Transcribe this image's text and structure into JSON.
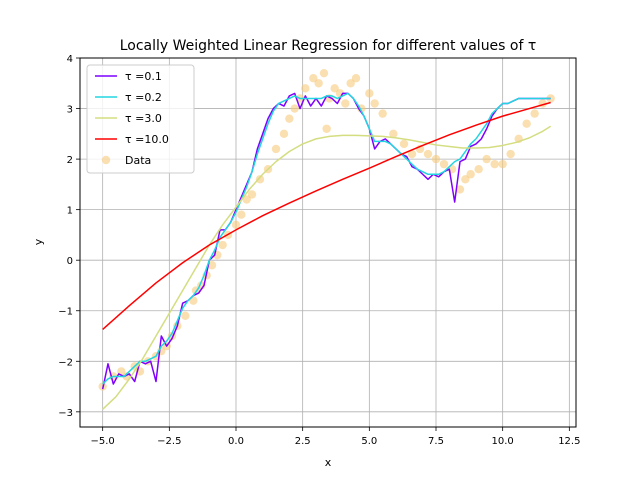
{
  "chart_data": {
    "type": "line",
    "title": "Locally Weighted Linear Regression for different values of τ",
    "xlabel": "x",
    "ylabel": "y",
    "xlim": [
      -5.85,
      12.75
    ],
    "ylim": [
      -3.3,
      4.0
    ],
    "xticks": [
      -5.0,
      -2.5,
      0.0,
      2.5,
      5.0,
      7.5,
      10.0,
      12.5
    ],
    "xtick_labels": [
      "−5.0",
      "−2.5",
      "0.0",
      "2.5",
      "5.0",
      "7.5",
      "10.0",
      "12.5"
    ],
    "yticks": [
      -3,
      -2,
      -1,
      0,
      1,
      2,
      3,
      4
    ],
    "ytick_labels": [
      "−3",
      "−2",
      "−1",
      "0",
      "1",
      "2",
      "3",
      "4"
    ],
    "grid": true,
    "legend_position": "top-left",
    "series": [
      {
        "name": "τ =0.1",
        "color": "#7f00ff",
        "x": [
          -5.0,
          -4.8,
          -4.6,
          -4.4,
          -4.2,
          -4.0,
          -3.8,
          -3.6,
          -3.4,
          -3.2,
          -3.0,
          -2.8,
          -2.6,
          -2.4,
          -2.2,
          -2.0,
          -1.8,
          -1.6,
          -1.4,
          -1.2,
          -1.0,
          -0.8,
          -0.6,
          -0.4,
          -0.2,
          0.0,
          0.2,
          0.4,
          0.6,
          0.8,
          1.0,
          1.2,
          1.4,
          1.6,
          1.8,
          2.0,
          2.2,
          2.4,
          2.6,
          2.8,
          3.0,
          3.2,
          3.4,
          3.6,
          3.8,
          4.0,
          4.2,
          4.4,
          4.6,
          4.8,
          5.0,
          5.2,
          5.4,
          5.6,
          5.8,
          6.0,
          6.2,
          6.4,
          6.6,
          6.8,
          7.0,
          7.2,
          7.4,
          7.6,
          7.8,
          8.0,
          8.2,
          8.4,
          8.6,
          8.8,
          9.0,
          9.2,
          9.4,
          9.6,
          9.8,
          10.0,
          10.2,
          10.4,
          10.6,
          10.8,
          11.0,
          11.2,
          11.4,
          11.6,
          11.8
        ],
        "y": [
          -2.55,
          -2.05,
          -2.45,
          -2.25,
          -2.3,
          -2.25,
          -2.4,
          -2.0,
          -2.05,
          -2.0,
          -2.4,
          -1.5,
          -1.7,
          -1.55,
          -1.3,
          -0.85,
          -0.8,
          -0.7,
          -0.65,
          -0.5,
          0.0,
          0.1,
          0.6,
          0.6,
          0.75,
          1.0,
          1.25,
          1.5,
          1.75,
          2.2,
          2.5,
          2.8,
          3.0,
          3.1,
          3.05,
          3.25,
          3.3,
          3.0,
          3.25,
          3.05,
          3.2,
          3.05,
          3.25,
          3.2,
          3.1,
          3.3,
          3.3,
          3.2,
          3.0,
          2.85,
          2.6,
          2.2,
          2.35,
          2.4,
          2.3,
          2.2,
          2.1,
          2.05,
          1.85,
          1.8,
          1.7,
          1.6,
          1.7,
          1.65,
          1.75,
          1.8,
          1.15,
          1.95,
          2.0,
          2.25,
          2.3,
          2.4,
          2.6,
          2.85,
          3.0,
          3.1,
          3.1,
          3.15,
          3.2,
          3.2,
          3.2,
          3.2,
          3.2,
          3.2,
          3.2
        ]
      },
      {
        "name": "τ =0.2",
        "color": "#22d5e0",
        "x": [
          -5.0,
          -4.8,
          -4.6,
          -4.4,
          -4.2,
          -4.0,
          -3.8,
          -3.6,
          -3.4,
          -3.2,
          -3.0,
          -2.8,
          -2.6,
          -2.4,
          -2.2,
          -2.0,
          -1.8,
          -1.6,
          -1.4,
          -1.2,
          -1.0,
          -0.8,
          -0.6,
          -0.4,
          -0.2,
          0.0,
          0.2,
          0.4,
          0.6,
          0.8,
          1.0,
          1.2,
          1.4,
          1.6,
          1.8,
          2.0,
          2.2,
          2.4,
          2.6,
          2.8,
          3.0,
          3.2,
          3.4,
          3.6,
          3.8,
          4.0,
          4.2,
          4.4,
          4.6,
          4.8,
          5.0,
          5.2,
          5.4,
          5.6,
          5.8,
          6.0,
          6.2,
          6.4,
          6.6,
          6.8,
          7.0,
          7.2,
          7.4,
          7.6,
          7.8,
          8.0,
          8.2,
          8.4,
          8.6,
          8.8,
          9.0,
          9.2,
          9.4,
          9.6,
          9.8,
          10.0,
          10.2,
          10.4,
          10.6,
          10.8,
          11.0,
          11.2,
          11.4,
          11.6,
          11.8
        ],
        "y": [
          -2.45,
          -2.35,
          -2.3,
          -2.3,
          -2.3,
          -2.2,
          -2.1,
          -2.0,
          -2.0,
          -1.95,
          -1.9,
          -1.7,
          -1.6,
          -1.45,
          -1.2,
          -0.95,
          -0.8,
          -0.7,
          -0.55,
          -0.3,
          0.0,
          0.2,
          0.45,
          0.6,
          0.75,
          0.95,
          1.2,
          1.45,
          1.75,
          2.1,
          2.4,
          2.7,
          2.95,
          3.1,
          3.15,
          3.2,
          3.25,
          3.2,
          3.2,
          3.2,
          3.2,
          3.2,
          3.25,
          3.25,
          3.2,
          3.25,
          3.3,
          3.2,
          3.05,
          2.85,
          2.6,
          2.35,
          2.35,
          2.35,
          2.3,
          2.2,
          2.1,
          2.0,
          1.9,
          1.8,
          1.75,
          1.7,
          1.7,
          1.7,
          1.75,
          1.85,
          1.95,
          2.0,
          2.15,
          2.3,
          2.4,
          2.55,
          2.7,
          2.9,
          3.0,
          3.1,
          3.1,
          3.15,
          3.2,
          3.2,
          3.2,
          3.2,
          3.2,
          3.2,
          3.2
        ]
      },
      {
        "name": "τ =3.0",
        "color": "#d4dd80",
        "x": [
          -5.0,
          -4.5,
          -4.0,
          -3.5,
          -3.0,
          -2.5,
          -2.0,
          -1.5,
          -1.0,
          -0.5,
          0.0,
          0.5,
          1.0,
          1.5,
          2.0,
          2.5,
          3.0,
          3.5,
          4.0,
          4.5,
          5.0,
          5.5,
          6.0,
          6.5,
          7.0,
          7.5,
          8.0,
          8.5,
          9.0,
          9.5,
          10.0,
          10.5,
          11.0,
          11.5,
          11.8
        ],
        "y": [
          -2.95,
          -2.7,
          -2.35,
          -1.95,
          -1.5,
          -1.05,
          -0.6,
          -0.15,
          0.3,
          0.7,
          1.05,
          1.4,
          1.7,
          1.95,
          2.15,
          2.3,
          2.4,
          2.45,
          2.47,
          2.47,
          2.46,
          2.45,
          2.42,
          2.38,
          2.33,
          2.28,
          2.25,
          2.22,
          2.22,
          2.23,
          2.27,
          2.33,
          2.42,
          2.55,
          2.65
        ]
      },
      {
        "name": "τ =10.0",
        "color": "#ff0000",
        "x": [
          -5.0,
          -4.0,
          -3.0,
          -2.0,
          -1.0,
          0.0,
          1.0,
          2.0,
          3.0,
          4.0,
          5.0,
          6.0,
          7.0,
          8.0,
          9.0,
          10.0,
          11.0,
          11.8
        ],
        "y": [
          -1.37,
          -0.9,
          -0.45,
          -0.05,
          0.3,
          0.6,
          0.88,
          1.13,
          1.37,
          1.6,
          1.82,
          2.05,
          2.27,
          2.48,
          2.67,
          2.85,
          3.0,
          3.12
        ]
      }
    ],
    "scatter": {
      "name": "Data",
      "color": "#f7c97c",
      "x": [
        -5.0,
        -4.6,
        -4.3,
        -4.1,
        -3.8,
        -3.6,
        -3.3,
        -3.0,
        -2.8,
        -2.6,
        -2.4,
        -2.2,
        -1.9,
        -1.6,
        -1.5,
        -1.3,
        -1.1,
        -0.9,
        -0.7,
        -0.5,
        -0.3,
        0.0,
        0.2,
        0.4,
        0.6,
        0.9,
        1.2,
        1.5,
        1.8,
        2.0,
        2.2,
        2.4,
        2.6,
        2.9,
        3.1,
        3.3,
        3.4,
        3.5,
        3.7,
        3.9,
        4.1,
        4.3,
        4.5,
        4.7,
        5.0,
        5.2,
        5.5,
        5.9,
        6.3,
        6.6,
        6.9,
        7.2,
        7.5,
        7.8,
        8.1,
        8.4,
        8.6,
        8.8,
        9.1,
        9.4,
        9.7,
        10.0,
        10.3,
        10.6,
        10.9,
        11.2,
        11.5,
        11.8
      ],
      "y": [
        -2.5,
        -2.3,
        -2.2,
        -2.3,
        -2.1,
        -2.2,
        -2.0,
        -1.9,
        -1.8,
        -1.7,
        -1.5,
        -1.3,
        -1.1,
        -0.8,
        -0.6,
        -0.5,
        -0.3,
        -0.1,
        0.1,
        0.3,
        0.5,
        0.7,
        0.9,
        1.2,
        1.3,
        1.6,
        1.8,
        2.2,
        2.5,
        2.8,
        3.0,
        3.2,
        3.4,
        3.6,
        3.5,
        3.7,
        2.6,
        3.2,
        3.4,
        3.3,
        3.1,
        3.5,
        3.6,
        3.0,
        3.3,
        3.1,
        2.9,
        2.5,
        2.3,
        2.1,
        2.2,
        2.1,
        2.0,
        1.9,
        1.8,
        1.4,
        1.6,
        1.7,
        1.8,
        2.0,
        1.9,
        1.9,
        2.1,
        2.4,
        2.7,
        2.9,
        3.1,
        3.2
      ]
    }
  }
}
